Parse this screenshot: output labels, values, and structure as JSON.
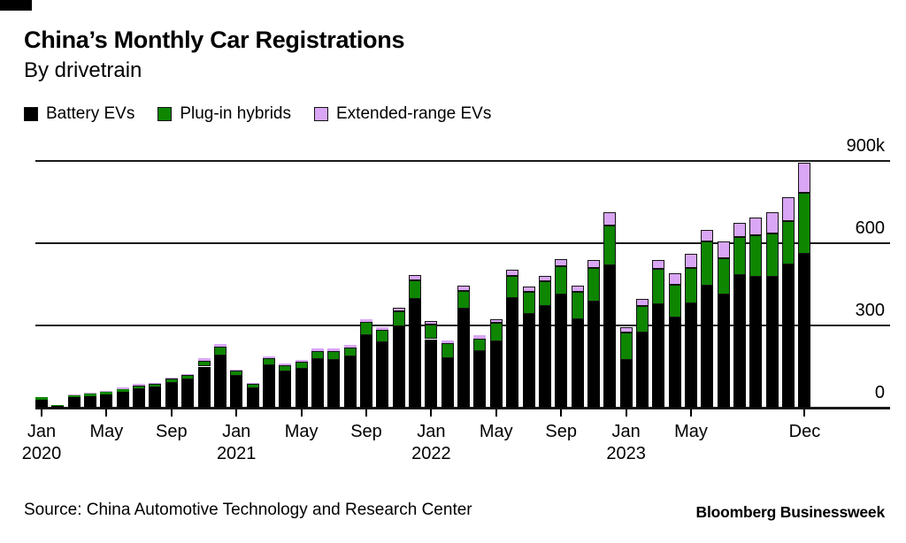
{
  "header": {
    "title": "China’s Monthly Car Registrations",
    "subtitle": "By drivetrain"
  },
  "legend": [
    {
      "label": "Battery EVs",
      "color": "#000000"
    },
    {
      "label": "Plug-in hybrids",
      "color": "#0e8600"
    },
    {
      "label": "Extended-range EVs",
      "color": "#d9a6f5"
    }
  ],
  "footer": {
    "source": "Source: China Automotive Technology and Research Center",
    "brand": "Bloomberg Businessweek"
  },
  "colors": {
    "battery_ev": "#000000",
    "plug_in_hybrid": "#0e8600",
    "extended_range_ev": "#d9a6f5",
    "outline": "#141414",
    "gridline": "#1a1a1a"
  },
  "chart_data": {
    "type": "bar",
    "stacked": true,
    "title": "China's Monthly Car Registrations",
    "subtitle": "By drivetrain",
    "unit": "thousand registrations per month",
    "grid": true,
    "legend_position": "top",
    "ylim": [
      0,
      900
    ],
    "yticks": [
      {
        "value": 900,
        "label": "900k"
      },
      {
        "value": 600,
        "label": "600"
      },
      {
        "value": 300,
        "label": "300"
      },
      {
        "value": 0,
        "label": "0"
      }
    ],
    "x": [
      "Jan 2020",
      "Feb 2020",
      "Mar 2020",
      "Apr 2020",
      "May 2020",
      "Jun 2020",
      "Jul 2020",
      "Aug 2020",
      "Sep 2020",
      "Oct 2020",
      "Nov 2020",
      "Dec 2020",
      "Jan 2021",
      "Feb 2021",
      "Mar 2021",
      "Apr 2021",
      "May 2021",
      "Jun 2021",
      "Jul 2021",
      "Aug 2021",
      "Sep 2021",
      "Oct 2021",
      "Nov 2021",
      "Dec 2021",
      "Jan 2022",
      "Feb 2022",
      "Mar 2022",
      "Apr 2022",
      "May 2022",
      "Jun 2022",
      "Jul 2022",
      "Aug 2022",
      "Sep 2022",
      "Oct 2022",
      "Nov 2022",
      "Dec 2022",
      "Jan 2023",
      "Feb 2023",
      "Mar 2023",
      "Apr 2023",
      "May 2023",
      "Jun 2023",
      "Jul 2023",
      "Aug 2023",
      "Sep 2023",
      "Oct 2023",
      "Nov 2023",
      "Dec 2023"
    ],
    "xticks": [
      {
        "index": 0,
        "line1": "Jan",
        "line2": "2020"
      },
      {
        "index": 4,
        "line1": "May"
      },
      {
        "index": 8,
        "line1": "Sep"
      },
      {
        "index": 12,
        "line1": "Jan",
        "line2": "2021"
      },
      {
        "index": 16,
        "line1": "May"
      },
      {
        "index": 20,
        "line1": "Sep"
      },
      {
        "index": 24,
        "line1": "Jan",
        "line2": "2022"
      },
      {
        "index": 28,
        "line1": "May"
      },
      {
        "index": 32,
        "line1": "Sep"
      },
      {
        "index": 36,
        "line1": "Jan",
        "line2": "2023"
      },
      {
        "index": 40,
        "line1": "May"
      },
      {
        "index": 47,
        "line1": "Dec"
      }
    ],
    "series": [
      {
        "name": "Battery EVs",
        "color": "#000000",
        "values": [
          30,
          8,
          38,
          42,
          48,
          57,
          68,
          73,
          90,
          102,
          150,
          190,
          115,
          72,
          155,
          133,
          143,
          178,
          175,
          186,
          265,
          239,
          296,
          396,
          250,
          181,
          360,
          205,
          242,
          401,
          342,
          371,
          412,
          324,
          387,
          519,
          175,
          275,
          377,
          328,
          381,
          446,
          414,
          485,
          479,
          478,
          522,
          560
        ]
      },
      {
        "name": "Plug-in hybrids",
        "color": "#0e8600",
        "values": [
          10,
          2,
          9,
          10,
          11,
          12,
          13,
          13,
          15,
          16,
          22,
          32,
          20,
          14,
          26,
          23,
          26,
          30,
          32,
          34,
          47,
          44,
          55,
          70,
          52,
          53,
          65,
          48,
          68,
          81,
          81,
          90,
          105,
          99,
          124,
          147,
          99,
          96,
          131,
          121,
          129,
          159,
          132,
          136,
          150,
          157,
          159,
          223
        ]
      },
      {
        "name": "Extended-range EVs",
        "color": "#d9a6f5",
        "values": [
          0,
          0,
          2,
          3,
          3,
          4,
          5,
          5,
          6,
          6,
          8,
          9,
          5,
          3,
          5,
          6,
          6,
          8,
          8,
          9,
          11,
          11,
          13,
          17,
          13,
          11,
          21,
          11,
          14,
          21,
          19,
          21,
          24,
          23,
          27,
          47,
          20,
          25,
          31,
          40,
          50,
          45,
          59,
          54,
          65,
          78,
          86,
          111
        ]
      }
    ]
  }
}
